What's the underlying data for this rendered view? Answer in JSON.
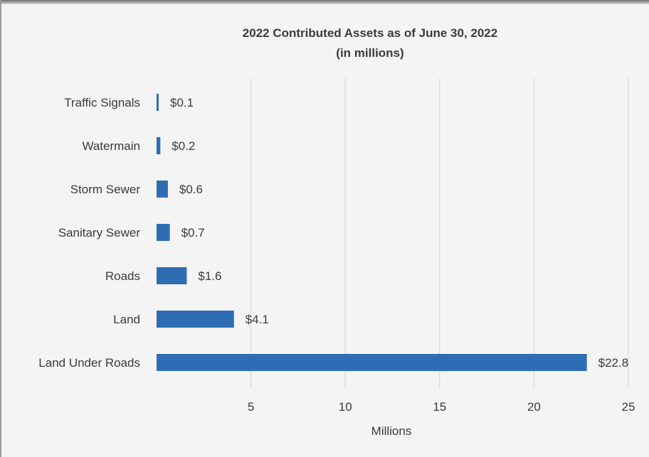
{
  "chart_data": {
    "type": "bar",
    "orientation": "horizontal",
    "title": "2022 Contributed Assets as of June 30, 2022",
    "subtitle": "(in millions)",
    "xlabel": "Millions",
    "ylabel": "",
    "categories": [
      "Traffic Signals",
      "Watermain",
      "Storm Sewer",
      "Sanitary Sewer",
      "Roads",
      "Land",
      "Land Under Roads"
    ],
    "values": [
      0.1,
      0.2,
      0.6,
      0.7,
      1.6,
      4.1,
      22.8
    ],
    "data_labels": [
      "$0.1",
      "$0.2",
      "$0.6",
      "$0.7",
      "$1.6",
      "$4.1",
      "$22.8"
    ],
    "xlim": [
      0,
      25
    ],
    "xticks": [
      5,
      10,
      15,
      20,
      25
    ],
    "grid": true,
    "legend": "none",
    "colors": {
      "bar": "#2e6db4",
      "grid": "#d9d9d9",
      "background": "#f4f4f4"
    }
  }
}
